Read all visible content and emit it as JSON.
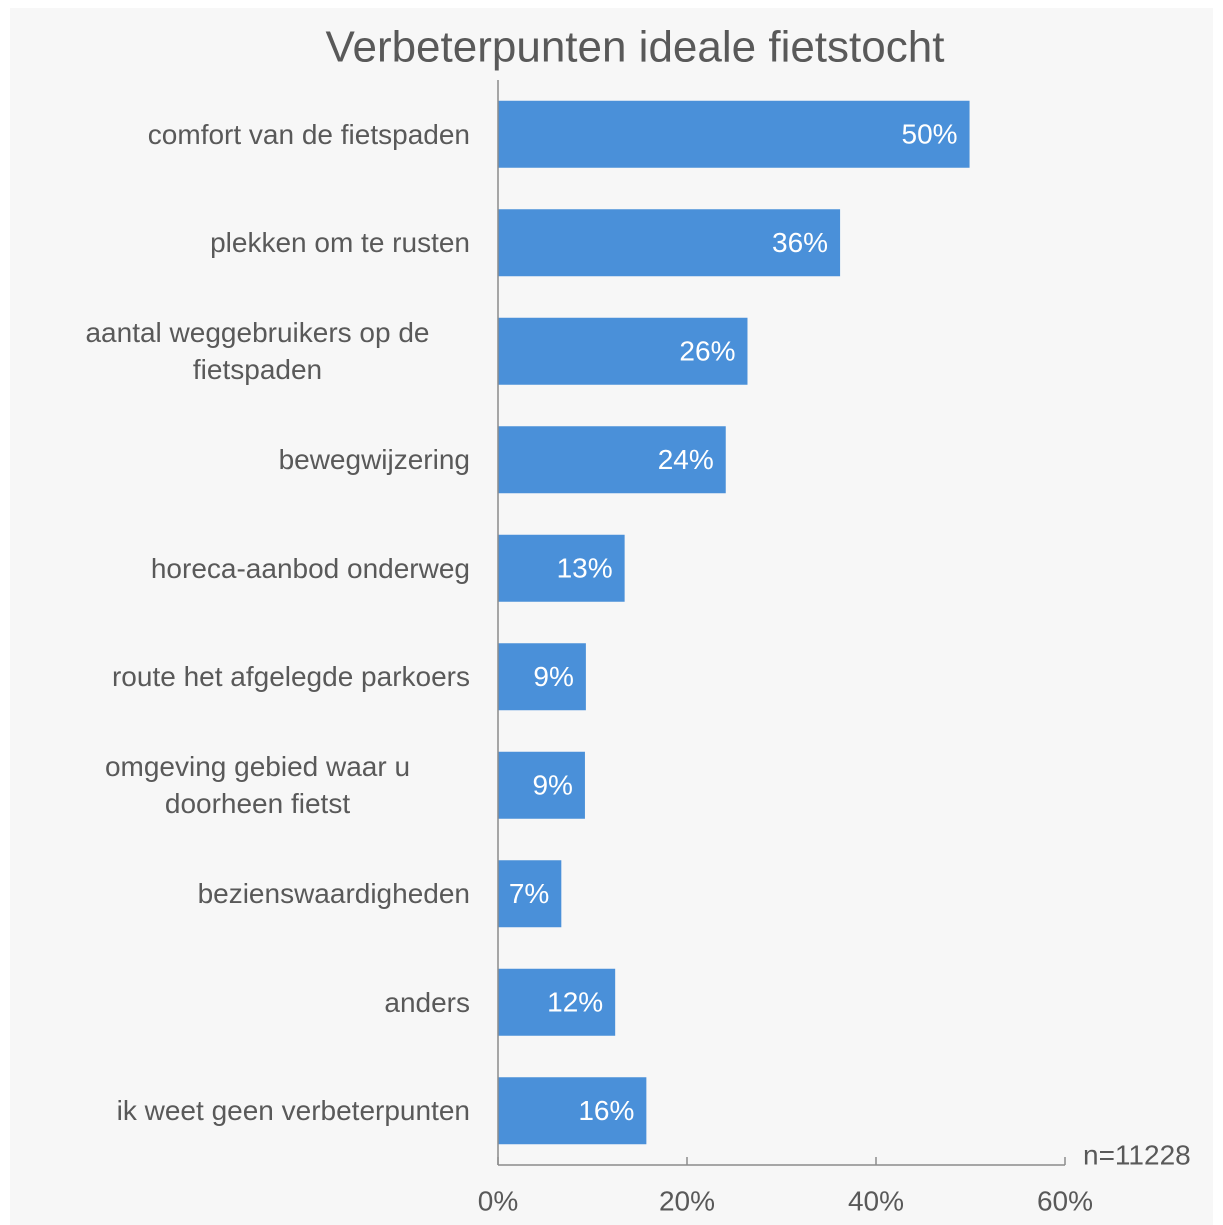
{
  "chart_data": {
    "type": "bar",
    "orientation": "horizontal",
    "title": "Verbeterpunten ideale fietstocht",
    "categories": [
      "comfort van de fietspaden",
      "plekken om te rusten",
      "aantal weggebruikers op de fietspaden",
      "bewegwijzering",
      "horeca-aanbod onderweg",
      "route het afgelegde parkoers",
      "omgeving gebied waar u doorheen fietst",
      "bezienswaardigheden",
      "anders",
      "ik weet geen verbeterpunten"
    ],
    "values": [
      49.9,
      36.2,
      26.4,
      24.1,
      13.4,
      9.3,
      9.2,
      6.7,
      12.4,
      15.7
    ],
    "value_labels": [
      "50%",
      "36%",
      "26%",
      "24%",
      "13%",
      "9%",
      "9%",
      "7%",
      "12%",
      "16%"
    ],
    "color": "#4a90d9",
    "xlim": [
      0,
      60
    ],
    "xticks": [
      {
        "value": 0,
        "label": "0%"
      },
      {
        "value": 20,
        "label": "20%"
      },
      {
        "value": 40,
        "label": "40%"
      },
      {
        "value": 60,
        "label": "60%"
      }
    ],
    "annotation": "n=11228",
    "grid": false
  }
}
